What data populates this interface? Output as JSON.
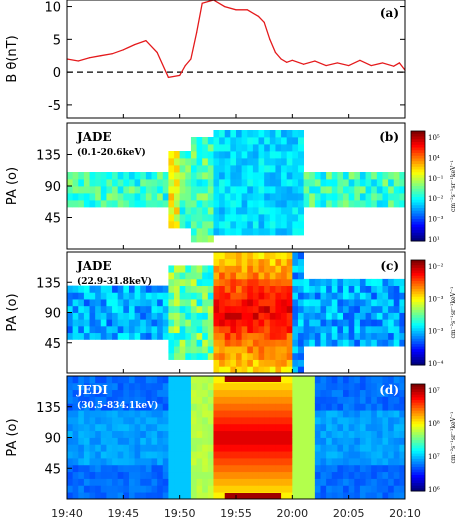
{
  "chart_data": [
    {
      "type": "line",
      "panel_label": "(a)",
      "ylabel": "B θ(nT)",
      "ylim": [
        -7,
        11
      ],
      "yticks": [
        -5,
        0,
        5,
        10
      ],
      "reference_line": {
        "y": 0,
        "style": "dashed"
      },
      "x_minutes_after_1940": [
        0,
        1,
        2,
        3,
        4,
        5,
        6,
        7,
        8,
        9,
        10,
        10.5,
        11,
        11.5,
        12,
        13,
        14,
        15,
        16,
        17,
        17.5,
        18,
        18.5,
        19,
        19.5,
        20,
        21,
        22,
        23,
        24,
        25,
        26,
        27,
        28,
        29,
        29.5,
        30
      ],
      "y": [
        2.0,
        1.7,
        2.2,
        2.5,
        2.8,
        3.4,
        4.2,
        4.8,
        3.0,
        -0.8,
        -0.5,
        1.0,
        2.0,
        6.0,
        10.5,
        11.0,
        10.0,
        9.5,
        9.5,
        8.5,
        7.6,
        5.0,
        3.0,
        2.0,
        1.5,
        1.8,
        1.2,
        1.7,
        1.0,
        1.4,
        1.0,
        1.8,
        1.0,
        1.4,
        0.9,
        1.4,
        0.3
      ],
      "color": "#e41a1c"
    },
    {
      "type": "heatmap",
      "panel_label": "(b)",
      "instrument": "JADE",
      "energy_range": "(0.1-20.6keV)",
      "ylabel": "PA (o)",
      "yticks": [
        45,
        90,
        135
      ],
      "colorbar_ticks": [
        "10⁵",
        "10⁴",
        "10⁻¹",
        "10⁻²",
        "10⁻³",
        "10¹"
      ],
      "colorbar_label": "cm⁻²s⁻¹sr⁻¹keV⁻¹"
    },
    {
      "type": "heatmap",
      "panel_label": "(c)",
      "instrument": "JADE",
      "energy_range": "(22.9-31.8keV)",
      "ylabel": "PA (o)",
      "yticks": [
        45,
        90,
        135
      ],
      "colorbar_ticks": [
        "10⁻²",
        "10⁻³",
        "10⁻³",
        "10⁻⁴"
      ],
      "colorbar_label": "cm⁻²s⁻¹sr⁻¹keV⁻¹"
    },
    {
      "type": "heatmap",
      "panel_label": "(d)",
      "instrument": "JEDI",
      "energy_range": "(30.5-834.1keV)",
      "ylabel": "PA (o)",
      "yticks": [
        45,
        90,
        135
      ],
      "colorbar_ticks": [
        "10⁷",
        "10⁸",
        "10⁷",
        "10⁶"
      ],
      "colorbar_label": "cm⁻²s⁻¹sr⁻¹keV⁻¹"
    }
  ],
  "x_axis": {
    "ticks": [
      "19:40",
      "19:45",
      "19:50",
      "19:55",
      "20:00",
      "20:05",
      "20:10"
    ],
    "range_minutes": [
      0,
      30
    ]
  }
}
